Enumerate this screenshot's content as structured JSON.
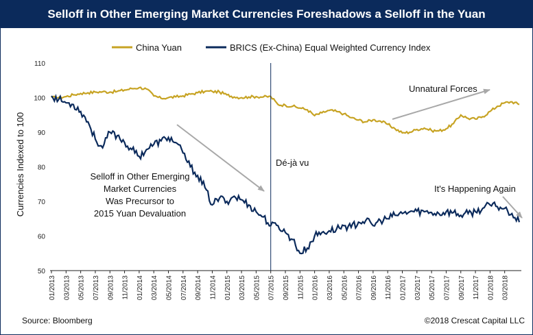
{
  "chart_data": {
    "type": "line",
    "title": "Selloff in Other Emerging Market Currencies Foreshadows a Selloff in the Yuan",
    "ylabel": "Currencies Indexed to 100",
    "ylim": [
      50,
      110
    ],
    "yticks": [
      50,
      60,
      70,
      80,
      90,
      100,
      110
    ],
    "xticks": [
      "01/2013",
      "03/2013",
      "05/2013",
      "07/2013",
      "09/2013",
      "11/2013",
      "01/2014",
      "03/2014",
      "05/2014",
      "07/2014",
      "09/2014",
      "11/2014",
      "01/2015",
      "03/2015",
      "05/2015",
      "07/2015",
      "09/2015",
      "11/2015",
      "01/2016",
      "03/2016",
      "05/2016",
      "07/2016",
      "09/2016",
      "11/2016",
      "01/2017",
      "03/2017",
      "05/2017",
      "07/2017",
      "09/2017",
      "11/2017",
      "01/2018",
      "03/2018"
    ],
    "x_months_range": [
      0,
      64
    ],
    "legend_position": "top",
    "series": [
      {
        "name": "China Yuan",
        "color": "#c7a323",
        "x": [
          0,
          1,
          2,
          3,
          4,
          5,
          6,
          7,
          8,
          9,
          10,
          11,
          12,
          13,
          14,
          15,
          16,
          17,
          18,
          19,
          20,
          21,
          22,
          23,
          24,
          25,
          26,
          27,
          28,
          29,
          30,
          31,
          32,
          33,
          34,
          35,
          36,
          37,
          38,
          39,
          40,
          41,
          42,
          43,
          44,
          45,
          46,
          47,
          48,
          49,
          50,
          51,
          52,
          53,
          54,
          55,
          56,
          57,
          58,
          59,
          60,
          61,
          62,
          63,
          64
        ],
        "values": [
          100.0,
          100.0,
          100.3,
          100.8,
          101.2,
          101.4,
          101.6,
          101.7,
          101.6,
          101.8,
          102.2,
          102.6,
          102.9,
          102.5,
          100.5,
          99.8,
          100.0,
          100.2,
          100.5,
          101.0,
          101.4,
          101.8,
          101.8,
          101.6,
          100.8,
          100.2,
          100.0,
          100.2,
          100.3,
          100.2,
          100.3,
          98.0,
          97.8,
          97.5,
          97.0,
          96.5,
          94.8,
          95.6,
          96.3,
          96.0,
          95.3,
          94.2,
          93.5,
          93.0,
          93.6,
          93.2,
          92.3,
          91.0,
          89.8,
          90.0,
          90.8,
          91.2,
          90.5,
          90.4,
          91.0,
          92.5,
          95.0,
          94.0,
          93.8,
          94.5,
          96.0,
          97.5,
          98.5,
          98.8,
          98.0
        ]
      },
      {
        "name": "BRICS (Ex-China) Equal Weighted Currency Index",
        "color": "#0b2a5b",
        "x": [
          0,
          1,
          2,
          3,
          4,
          5,
          6,
          7,
          8,
          9,
          10,
          11,
          12,
          13,
          14,
          15,
          16,
          17,
          18,
          19,
          20,
          21,
          22,
          23,
          24,
          25,
          26,
          27,
          28,
          29,
          30,
          31,
          32,
          33,
          34,
          35,
          36,
          37,
          38,
          39,
          40,
          41,
          42,
          43,
          44,
          45,
          46,
          47,
          48,
          49,
          50,
          51,
          52,
          53,
          54,
          55,
          56,
          57,
          58,
          59,
          60,
          61,
          62,
          63,
          64
        ],
        "values": [
          100.5,
          99.5,
          98.5,
          98.0,
          96.0,
          93.0,
          88.0,
          85.5,
          90.0,
          89.0,
          87.0,
          85.0,
          83.0,
          85.0,
          86.5,
          87.5,
          88.5,
          87.0,
          84.0,
          80.0,
          77.5,
          74.0,
          69.0,
          71.0,
          70.0,
          71.5,
          70.5,
          69.0,
          67.0,
          65.5,
          63.0,
          63.0,
          61.0,
          59.0,
          55.0,
          56.5,
          60.0,
          61.0,
          61.5,
          62.0,
          63.0,
          62.5,
          64.0,
          64.5,
          63.0,
          64.5,
          65.0,
          66.0,
          66.5,
          67.0,
          67.2,
          67.0,
          66.8,
          66.5,
          67.0,
          66.8,
          66.0,
          66.5,
          67.0,
          68.0,
          69.0,
          68.5,
          68.0,
          66.5,
          64.0
        ]
      }
    ],
    "annotations": {
      "deja_vu": "Dé-jà vu",
      "unnatural": "Unnatural Forces",
      "happening": "It's Happening Again",
      "selloff_lines": [
        "Selloff in Other Emerging",
        "Market Currencies",
        "Was Precursor to",
        "2015 Yuan Devaluation"
      ]
    },
    "vertical_marker_month": 30
  },
  "footer": {
    "source": "Source: Bloomberg",
    "copyright": "©2018 Crescat Capital LLC"
  },
  "colors": {
    "header_bg": "#0b2a5b",
    "arrow": "#a8a8a8"
  }
}
